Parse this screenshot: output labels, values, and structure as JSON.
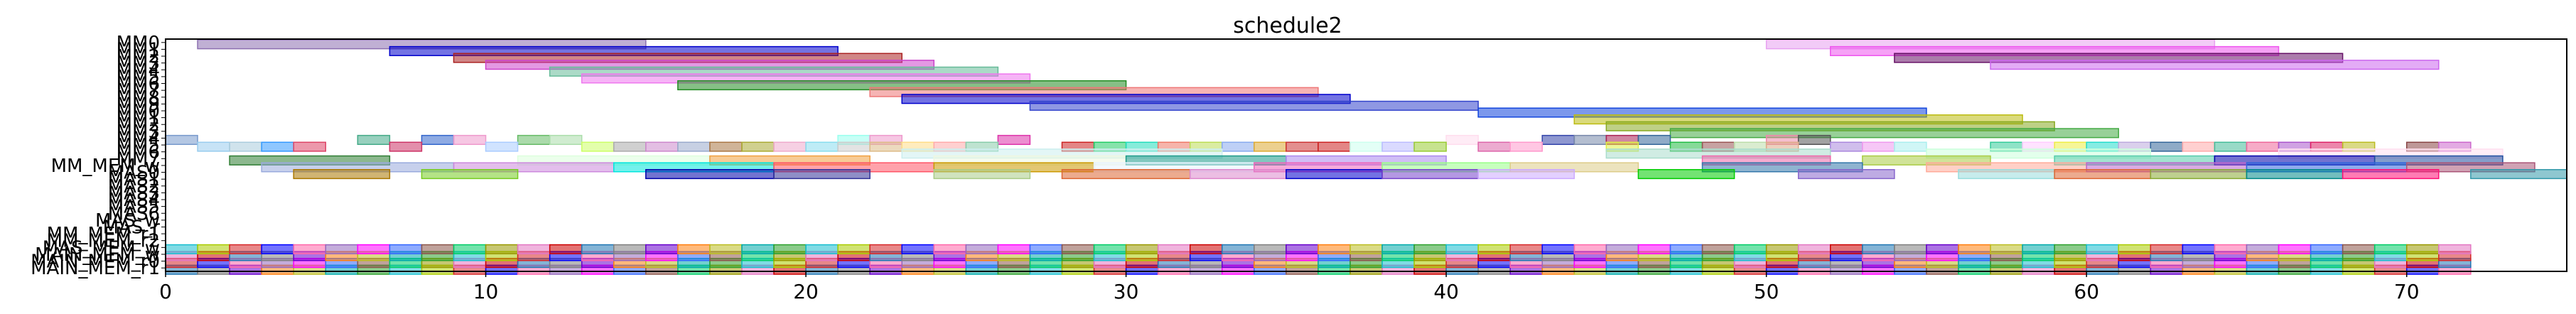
{
  "chart_data": {
    "type": "gantt",
    "title": "schedule2",
    "xlim": [
      0,
      75
    ],
    "x_ticks": [
      0,
      10,
      20,
      30,
      40,
      50,
      60,
      70
    ],
    "grid": false,
    "rows": [
      "MAIN_MEM_r1",
      "MAIN_MEM_r0",
      "MAIN_MEM_w",
      "MAS_MEM_w",
      "MM_MEM_r2",
      "MM_MEM_r1",
      "MAS_r",
      "MAS_w",
      "MAS6",
      "MAS5",
      "MAS4",
      "MAS3",
      "MAS2",
      "MAS1",
      "MAS0",
      "MM_MEM_w",
      "MM7",
      "MM6",
      "MM5",
      "MM4",
      "MM3",
      "MM2",
      "MM1",
      "MM0",
      "MM9",
      "MM8",
      "MM7",
      "MM6",
      "MM5",
      "MM4",
      "MM3",
      "MM2",
      "MM1",
      "MM0"
    ],
    "visible_row_labels": [
      "MM0",
      "MM8",
      "MM_MEM_w",
      "MAS_w",
      "MAS_r",
      "MAS0",
      "MAS4",
      "MM_MEM_r2",
      "MM_MEM_r1",
      "MAS_MEM_w",
      "MAIN_MEM_r0",
      "MAIN_MEM_r1"
    ],
    "palette": [
      "#1f77b4",
      "#ff7f0e",
      "#2ca02c",
      "#d62728",
      "#9467bd",
      "#8c564b",
      "#e377c2",
      "#7f7f7f",
      "#bcbd22",
      "#17becf",
      "#0000ff",
      "#ff00ff",
      "#00cc66",
      "#cc0000",
      "#6600cc",
      "#00aaaa",
      "#aacc00",
      "#ff66aa",
      "#3366ff",
      "#999900"
    ],
    "tasks": [
      {
        "row": 33,
        "start": 1,
        "end": 15,
        "color": "#8c6fb0"
      },
      {
        "row": 33,
        "start": 50,
        "end": 64,
        "color": "#e7a0f0"
      },
      {
        "row": 32,
        "start": 7,
        "end": 21,
        "color": "#0000cc"
      },
      {
        "row": 32,
        "start": 52,
        "end": 66,
        "color": "#ee55ee"
      },
      {
        "row": 31,
        "start": 9,
        "end": 23,
        "color": "#aa2222"
      },
      {
        "row": 31,
        "start": 54,
        "end": 68,
        "color": "#661166"
      },
      {
        "row": 30,
        "start": 10,
        "end": 24,
        "color": "#cc44cc"
      },
      {
        "row": 30,
        "start": 57,
        "end": 71,
        "color": "#cc66ee"
      },
      {
        "row": 29,
        "start": 12,
        "end": 26,
        "color": "#66bb99"
      },
      {
        "row": 28,
        "start": 13,
        "end": 27,
        "color": "#ee77ee"
      },
      {
        "row": 27,
        "start": 16,
        "end": 30,
        "color": "#228b22"
      },
      {
        "row": 26,
        "start": 22,
        "end": 36,
        "color": "#ee7777"
      },
      {
        "row": 25,
        "start": 23,
        "end": 37,
        "color": "#0000cc"
      },
      {
        "row": 24,
        "start": 27,
        "end": 41,
        "color": "#3344cc"
      },
      {
        "row": 23,
        "start": 41,
        "end": 55,
        "color": "#1144dd"
      },
      {
        "row": 22,
        "start": 44,
        "end": 58,
        "color": "#bbbb11"
      },
      {
        "row": 21,
        "start": 45,
        "end": 59,
        "color": "#88aa22"
      },
      {
        "row": 20,
        "start": 47,
        "end": 61,
        "color": "#44aa44"
      },
      {
        "row": 19,
        "start": 0,
        "end": 1,
        "color": "#7799cc"
      },
      {
        "row": 19,
        "start": 6,
        "end": 7,
        "color": "#44aa88"
      },
      {
        "row": 19,
        "start": 8,
        "end": 9,
        "color": "#3366cc"
      },
      {
        "row": 19,
        "start": 9,
        "end": 10,
        "color": "#ee99cc"
      },
      {
        "row": 19,
        "start": 11,
        "end": 12,
        "color": "#66bb66"
      },
      {
        "row": 19,
        "start": 12,
        "end": 13,
        "color": "#aaddaa"
      },
      {
        "row": 19,
        "start": 21,
        "end": 22,
        "color": "#99ffee"
      },
      {
        "row": 19,
        "start": 22,
        "end": 23,
        "color": "#ee99cc"
      },
      {
        "row": 19,
        "start": 26,
        "end": 27,
        "color": "#dd33aa"
      },
      {
        "row": 19,
        "start": 40,
        "end": 41,
        "color": "#ffddee"
      },
      {
        "row": 19,
        "start": 43,
        "end": 44,
        "color": "#3344aa"
      },
      {
        "row": 19,
        "start": 44,
        "end": 45,
        "color": "#7788aa"
      },
      {
        "row": 19,
        "start": 45,
        "end": 46,
        "color": "#aa2255"
      },
      {
        "row": 19,
        "start": 46,
        "end": 47,
        "color": "#336699"
      },
      {
        "row": 19,
        "start": 50,
        "end": 51,
        "color": "#ee88aa"
      },
      {
        "row": 19,
        "start": 51,
        "end": 52,
        "color": "#555555"
      },
      {
        "row": 18,
        "start": 1,
        "end": 2,
        "color": "#99ccee"
      },
      {
        "row": 18,
        "start": 2,
        "end": 3,
        "color": "#aaccdd"
      },
      {
        "row": 18,
        "start": 3,
        "end": 4,
        "color": "#3399ff"
      },
      {
        "row": 18,
        "start": 4,
        "end": 5,
        "color": "#dd4466"
      },
      {
        "row": 18,
        "start": 7,
        "end": 8,
        "color": "#cc3366"
      },
      {
        "row": 18,
        "start": 10,
        "end": 11,
        "color": "#aaccff"
      },
      {
        "row": 18,
        "start": 13,
        "end": 14,
        "color": "#ccff66"
      },
      {
        "row": 18,
        "start": 14,
        "end": 15,
        "color": "#aaaaaa"
      },
      {
        "row": 18,
        "start": 15,
        "end": 16,
        "color": "#cc88cc"
      },
      {
        "row": 18,
        "start": 16,
        "end": 17,
        "color": "#99aacc"
      },
      {
        "row": 18,
        "start": 17,
        "end": 18,
        "color": "#aa7744"
      },
      {
        "row": 18,
        "start": 18,
        "end": 19,
        "color": "#aaaa33"
      },
      {
        "row": 18,
        "start": 19,
        "end": 20,
        "color": "#eeaacc"
      },
      {
        "row": 18,
        "start": 20,
        "end": 21,
        "color": "#88ddee"
      },
      {
        "row": 18,
        "start": 21,
        "end": 22,
        "color": "#cccccc"
      },
      {
        "row": 18,
        "start": 22,
        "end": 23,
        "color": "#ddbb88"
      },
      {
        "row": 18,
        "start": 23,
        "end": 24,
        "color": "#ffdd88"
      },
      {
        "row": 18,
        "start": 24,
        "end": 25,
        "color": "#ffaaaa"
      },
      {
        "row": 18,
        "start": 25,
        "end": 26,
        "color": "#88ccaa"
      },
      {
        "row": 18,
        "start": 28,
        "end": 29,
        "color": "#cc2222"
      },
      {
        "row": 18,
        "start": 29,
        "end": 30,
        "color": "#22cc66"
      },
      {
        "row": 18,
        "start": 30,
        "end": 31,
        "color": "#22ddbb"
      },
      {
        "row": 18,
        "start": 31,
        "end": 32,
        "color": "#ee7766"
      },
      {
        "row": 18,
        "start": 32,
        "end": 33,
        "color": "#bbdd55"
      },
      {
        "row": 18,
        "start": 33,
        "end": 34,
        "color": "#88aaee"
      },
      {
        "row": 18,
        "start": 34,
        "end": 35,
        "color": "#ddaa33"
      },
      {
        "row": 18,
        "start": 35,
        "end": 36,
        "color": "#cc3333"
      },
      {
        "row": 18,
        "start": 36,
        "end": 37,
        "color": "#cc2222"
      },
      {
        "row": 18,
        "start": 37,
        "end": 38,
        "color": "#ccffee"
      },
      {
        "row": 18,
        "start": 38,
        "end": 39,
        "color": "#bbbbff"
      },
      {
        "row": 18,
        "start": 39,
        "end": 40,
        "color": "#99cc33"
      },
      {
        "row": 18,
        "start": 41,
        "end": 42,
        "color": "#dd66aa"
      },
      {
        "row": 18,
        "start": 42,
        "end": 43,
        "color": "#ff99cc"
      },
      {
        "row": 18,
        "start": 45,
        "end": 46,
        "color": "#ddee44"
      },
      {
        "row": 18,
        "start": 47,
        "end": 48,
        "color": "#22bb44"
      },
      {
        "row": 18,
        "start": 48,
        "end": 49,
        "color": "#995555"
      },
      {
        "row": 18,
        "start": 49,
        "end": 50,
        "color": "#bbddaa"
      },
      {
        "row": 18,
        "start": 50,
        "end": 51,
        "color": "#ddaa88"
      },
      {
        "row": 18,
        "start": 52,
        "end": 53,
        "color": "#aa88dd"
      },
      {
        "row": 18,
        "start": 53,
        "end": 54,
        "color": "#ee99ee"
      },
      {
        "row": 18,
        "start": 54,
        "end": 55,
        "color": "#aaeeee"
      },
      {
        "row": 18,
        "start": 57,
        "end": 58,
        "color": "#33cc99"
      },
      {
        "row": 18,
        "start": 58,
        "end": 59,
        "color": "#ffccff"
      },
      {
        "row": 18,
        "start": 59,
        "end": 60,
        "color": "#eeee44"
      },
      {
        "row": 18,
        "start": 60,
        "end": 61,
        "color": "#22ddcc"
      },
      {
        "row": 18,
        "start": 61,
        "end": 62,
        "color": "#bbaadd"
      },
      {
        "row": 18,
        "start": 62,
        "end": 63,
        "color": "#336699"
      },
      {
        "row": 18,
        "start": 63,
        "end": 64,
        "color": "#ffaaaa"
      },
      {
        "row": 18,
        "start": 64,
        "end": 65,
        "color": "#44bb99"
      },
      {
        "row": 18,
        "start": 65,
        "end": 66,
        "color": "#ee6699"
      },
      {
        "row": 18,
        "start": 66,
        "end": 67,
        "color": "#aa55cc"
      },
      {
        "row": 18,
        "start": 67,
        "end": 68,
        "color": "#dd2266"
      },
      {
        "row": 18,
        "start": 68,
        "end": 69,
        "color": "#bbbb22"
      },
      {
        "row": 18,
        "start": 70,
        "end": 71,
        "color": "#884444"
      },
      {
        "row": 18,
        "start": 71,
        "end": 72,
        "color": "#cc66cc"
      },
      {
        "row": 17,
        "start": 23,
        "end": 33,
        "color": "#cceeee"
      },
      {
        "row": 17,
        "start": 45,
        "end": 52,
        "color": "#aaddcc"
      },
      {
        "row": 17,
        "start": 55,
        "end": 62,
        "color": "#ccffdd"
      },
      {
        "row": 17,
        "start": 66,
        "end": 73,
        "color": "#ffe0f0"
      },
      {
        "row": 16,
        "start": 2,
        "end": 7,
        "color": "#2e7d32"
      },
      {
        "row": 16,
        "start": 11,
        "end": 17,
        "color": "#ddffdd"
      },
      {
        "row": 16,
        "start": 17,
        "end": 22,
        "color": "#f0a040"
      },
      {
        "row": 16,
        "start": 24,
        "end": 30,
        "color": "#eef7e0"
      },
      {
        "row": 16,
        "start": 30,
        "end": 35,
        "color": "#1a9988"
      },
      {
        "row": 16,
        "start": 35,
        "end": 40,
        "color": "#aa88ee"
      },
      {
        "row": 16,
        "start": 48,
        "end": 52,
        "color": "#ee66aa"
      },
      {
        "row": 16,
        "start": 53,
        "end": 57,
        "color": "#aacc44"
      },
      {
        "row": 16,
        "start": 59,
        "end": 64,
        "color": "#55ccaa"
      },
      {
        "row": 16,
        "start": 64,
        "end": 69,
        "color": "#0000aa"
      },
      {
        "row": 16,
        "start": 69,
        "end": 73,
        "color": "#1f4fa0"
      },
      {
        "row": 15,
        "start": 3,
        "end": 9,
        "color": "#99aadd"
      },
      {
        "row": 15,
        "start": 9,
        "end": 14,
        "color": "#cc88dd"
      },
      {
        "row": 15,
        "start": 14,
        "end": 19,
        "color": "#00e5dd"
      },
      {
        "row": 15,
        "start": 19,
        "end": 24,
        "color": "#ff5566"
      },
      {
        "row": 15,
        "start": 24,
        "end": 29,
        "color": "#cc9900"
      },
      {
        "row": 15,
        "start": 29,
        "end": 34,
        "color": "#e8f4ff"
      },
      {
        "row": 15,
        "start": 34,
        "end": 38,
        "color": "#ee66bb"
      },
      {
        "row": 15,
        "start": 38,
        "end": 42,
        "color": "#99ff88"
      },
      {
        "row": 15,
        "start": 42,
        "end": 46,
        "color": "#ddcc88"
      },
      {
        "row": 15,
        "start": 48,
        "end": 53,
        "color": "#3377aa"
      },
      {
        "row": 15,
        "start": 55,
        "end": 60,
        "color": "#ffaa99"
      },
      {
        "row": 15,
        "start": 60,
        "end": 65,
        "color": "#bb66cc"
      },
      {
        "row": 15,
        "start": 65,
        "end": 70,
        "color": "#3366dd"
      },
      {
        "row": 15,
        "start": 70,
        "end": 74,
        "color": "#aa5577"
      },
      {
        "row": 14,
        "start": 4,
        "end": 7,
        "color": "#aa7700"
      },
      {
        "row": 14,
        "start": 8,
        "end": 11,
        "color": "#77cc22"
      },
      {
        "row": 14,
        "start": 15,
        "end": 19,
        "color": "#0000aa"
      },
      {
        "row": 14,
        "start": 19,
        "end": 22,
        "color": "#333399"
      },
      {
        "row": 14,
        "start": 24,
        "end": 27,
        "color": "#aacc88"
      },
      {
        "row": 14,
        "start": 28,
        "end": 32,
        "color": "#dd6633"
      },
      {
        "row": 14,
        "start": 32,
        "end": 35,
        "color": "#dd88cc"
      },
      {
        "row": 14,
        "start": 35,
        "end": 38,
        "color": "#0000cc"
      },
      {
        "row": 14,
        "start": 38,
        "end": 41,
        "color": "#7744cc"
      },
      {
        "row": 14,
        "start": 41,
        "end": 44,
        "color": "#ccaaff"
      },
      {
        "row": 14,
        "start": 46,
        "end": 49,
        "color": "#00cc00"
      },
      {
        "row": 14,
        "start": 51,
        "end": 54,
        "color": "#8866cc"
      },
      {
        "row": 14,
        "start": 56,
        "end": 59,
        "color": "#99dddd"
      },
      {
        "row": 14,
        "start": 59,
        "end": 62,
        "color": "#dd6633"
      },
      {
        "row": 14,
        "start": 62,
        "end": 65,
        "color": "#88aa33"
      },
      {
        "row": 14,
        "start": 65,
        "end": 68,
        "color": "#008888"
      },
      {
        "row": 14,
        "start": 68,
        "end": 71,
        "color": "#ff1177"
      },
      {
        "row": 14,
        "start": 72,
        "end": 75,
        "color": "#3399aa"
      }
    ],
    "memory_rows": {
      "rows": [
        0,
        1,
        2,
        3
      ],
      "slot_start": 0,
      "slot_count": 72,
      "slot_width": 1
    }
  }
}
